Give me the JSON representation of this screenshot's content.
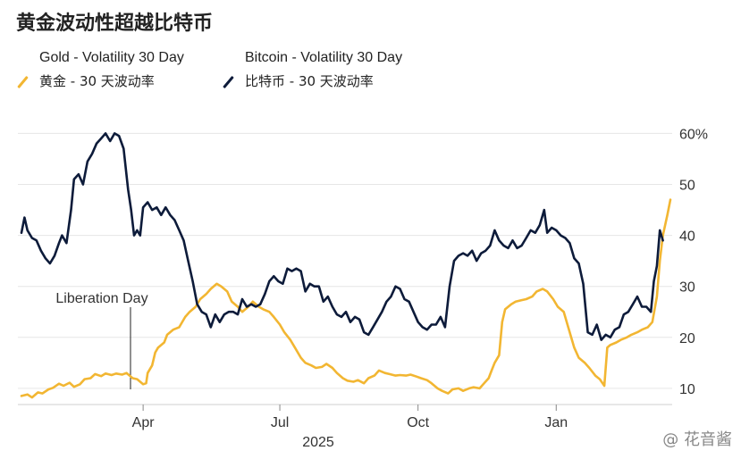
{
  "chart_data": {
    "type": "line",
    "title": "黄金波动性超越比特币",
    "legend": [
      {
        "name_en": "Gold - Volatility 30 Day",
        "name_cn": "黄金 - 30 天波动率",
        "color": "#f2b632"
      },
      {
        "name_en": "Bitcoin - Volatility 30 Day",
        "name_cn": "比特币 - 30 天波动率",
        "color": "#0d1b3a"
      }
    ],
    "y_axis": {
      "ticks": [
        "10",
        "20",
        "30",
        "40",
        "50",
        "60%"
      ],
      "range": [
        7,
        62
      ],
      "position": "right"
    },
    "x_axis": {
      "ticks": [
        "Apr",
        "Jul",
        "Oct",
        "Jan"
      ],
      "year_label": "2025"
    },
    "annotation": "Liberation Day",
    "series": [
      {
        "name": "Gold - Volatility 30 Day",
        "color": "#f2b632",
        "points": [
          [
            "2025-01-10",
            8.5
          ],
          [
            "2025-01-14",
            8.8
          ],
          [
            "2025-01-17",
            8.2
          ],
          [
            "2025-01-21",
            9.2
          ],
          [
            "2025-01-24",
            9.0
          ],
          [
            "2025-01-28",
            9.8
          ],
          [
            "2025-01-31",
            10.1
          ],
          [
            "2025-02-04",
            10.9
          ],
          [
            "2025-02-07",
            10.5
          ],
          [
            "2025-02-11",
            11.1
          ],
          [
            "2025-02-14",
            10.3
          ],
          [
            "2025-02-18",
            10.8
          ],
          [
            "2025-02-21",
            11.8
          ],
          [
            "2025-02-25",
            12.0
          ],
          [
            "2025-02-28",
            12.8
          ],
          [
            "2025-03-04",
            12.4
          ],
          [
            "2025-03-07",
            12.9
          ],
          [
            "2025-03-11",
            12.6
          ],
          [
            "2025-03-14",
            12.9
          ],
          [
            "2025-03-18",
            12.7
          ],
          [
            "2025-03-21",
            13.0
          ],
          [
            "2025-03-25",
            12.0
          ],
          [
            "2025-03-28",
            11.8
          ],
          [
            "2025-04-01",
            10.8
          ],
          [
            "2025-04-03",
            11.0
          ],
          [
            "2025-04-04",
            13.0
          ],
          [
            "2025-04-07",
            14.5
          ],
          [
            "2025-04-09",
            17.0
          ],
          [
            "2025-04-11",
            18.0
          ],
          [
            "2025-04-15",
            19.0
          ],
          [
            "2025-04-17",
            20.5
          ],
          [
            "2025-04-21",
            21.5
          ],
          [
            "2025-04-25",
            22.0
          ],
          [
            "2025-04-29",
            24.0
          ],
          [
            "2025-05-02",
            25.0
          ],
          [
            "2025-05-06",
            26.0
          ],
          [
            "2025-05-09",
            27.5
          ],
          [
            "2025-05-13",
            28.5
          ],
          [
            "2025-05-16",
            29.5
          ],
          [
            "2025-05-20",
            30.5
          ],
          [
            "2025-05-23",
            30.0
          ],
          [
            "2025-05-27",
            29.0
          ],
          [
            "2025-05-30",
            27.0
          ],
          [
            "2025-06-03",
            26.0
          ],
          [
            "2025-06-06",
            25.0
          ],
          [
            "2025-06-10",
            26.0
          ],
          [
            "2025-06-13",
            27.0
          ],
          [
            "2025-06-17",
            26.0
          ],
          [
            "2025-06-20",
            25.5
          ],
          [
            "2025-06-24",
            25.0
          ],
          [
            "2025-06-27",
            24.0
          ],
          [
            "2025-07-01",
            22.5
          ],
          [
            "2025-07-04",
            21.0
          ],
          [
            "2025-07-08",
            19.5
          ],
          [
            "2025-07-11",
            18.0
          ],
          [
            "2025-07-15",
            16.0
          ],
          [
            "2025-07-18",
            15.0
          ],
          [
            "2025-07-22",
            14.5
          ],
          [
            "2025-07-25",
            14.0
          ],
          [
            "2025-07-29",
            14.2
          ],
          [
            "2025-08-01",
            14.8
          ],
          [
            "2025-08-05",
            14.0
          ],
          [
            "2025-08-08",
            13.0
          ],
          [
            "2025-08-12",
            12.0
          ],
          [
            "2025-08-15",
            11.5
          ],
          [
            "2025-08-19",
            11.3
          ],
          [
            "2025-08-22",
            11.6
          ],
          [
            "2025-08-26",
            11.0
          ],
          [
            "2025-08-29",
            12.0
          ],
          [
            "2025-09-02",
            12.5
          ],
          [
            "2025-09-05",
            13.5
          ],
          [
            "2025-09-09",
            13.0
          ],
          [
            "2025-09-12",
            12.8
          ],
          [
            "2025-09-16",
            12.5
          ],
          [
            "2025-09-19",
            12.6
          ],
          [
            "2025-09-23",
            12.5
          ],
          [
            "2025-09-26",
            12.7
          ],
          [
            "2025-09-30",
            12.3
          ],
          [
            "2025-10-03",
            12.0
          ],
          [
            "2025-10-07",
            11.6
          ],
          [
            "2025-10-10",
            11.0
          ],
          [
            "2025-10-14",
            10.0
          ],
          [
            "2025-10-17",
            9.5
          ],
          [
            "2025-10-21",
            9.0
          ],
          [
            "2025-10-24",
            9.8
          ],
          [
            "2025-10-28",
            10.0
          ],
          [
            "2025-10-31",
            9.5
          ],
          [
            "2025-11-04",
            10.0
          ],
          [
            "2025-11-07",
            10.2
          ],
          [
            "2025-11-11",
            10.0
          ],
          [
            "2025-11-14",
            11.0
          ],
          [
            "2025-11-17",
            12.0
          ],
          [
            "2025-11-19",
            13.5
          ],
          [
            "2025-11-21",
            15.0
          ],
          [
            "2025-11-24",
            16.5
          ],
          [
            "2025-11-26",
            23.0
          ],
          [
            "2025-11-28",
            25.5
          ],
          [
            "2025-12-02",
            26.5
          ],
          [
            "2025-12-05",
            27.0
          ],
          [
            "2025-12-09",
            27.3
          ],
          [
            "2025-12-12",
            27.5
          ],
          [
            "2025-12-16",
            28.0
          ],
          [
            "2025-12-19",
            29.0
          ],
          [
            "2025-12-23",
            29.5
          ],
          [
            "2025-12-26",
            29.0
          ],
          [
            "2025-12-30",
            27.5
          ],
          [
            "2026-01-02",
            26.0
          ],
          [
            "2026-01-06",
            25.0
          ],
          [
            "2026-01-09",
            22.0
          ],
          [
            "2026-01-13",
            18.0
          ],
          [
            "2026-01-16",
            16.0
          ],
          [
            "2026-01-20",
            15.0
          ],
          [
            "2026-01-23",
            14.0
          ],
          [
            "2026-01-27",
            12.5
          ],
          [
            "2026-01-30",
            11.8
          ],
          [
            "2026-02-02",
            10.5
          ],
          [
            "2026-02-04",
            18.0
          ],
          [
            "2026-02-06",
            18.5
          ],
          [
            "2026-02-10",
            19.0
          ],
          [
            "2026-02-13",
            19.5
          ],
          [
            "2026-02-17",
            20.0
          ],
          [
            "2026-02-20",
            20.5
          ],
          [
            "2026-02-24",
            21.0
          ],
          [
            "2026-02-27",
            21.5
          ],
          [
            "2026-03-03",
            22.0
          ],
          [
            "2026-03-06",
            23.0
          ],
          [
            "2026-03-09",
            28.0
          ],
          [
            "2026-03-11",
            35.0
          ],
          [
            "2026-03-13",
            40.0
          ],
          [
            "2026-03-16",
            44.0
          ],
          [
            "2026-03-18",
            47.0
          ]
        ]
      },
      {
        "name": "Bitcoin - Volatility 30 Day",
        "color": "#0d1b3a",
        "points": [
          [
            "2025-01-10",
            40.5
          ],
          [
            "2025-01-12",
            43.5
          ],
          [
            "2025-01-14",
            41.0
          ],
          [
            "2025-01-17",
            39.5
          ],
          [
            "2025-01-20",
            39.0
          ],
          [
            "2025-01-23",
            37.0
          ],
          [
            "2025-01-26",
            35.5
          ],
          [
            "2025-01-29",
            34.5
          ],
          [
            "2025-02-01",
            36.0
          ],
          [
            "2025-02-04",
            38.5
          ],
          [
            "2025-02-06",
            40.0
          ],
          [
            "2025-02-09",
            38.5
          ],
          [
            "2025-02-12",
            45.0
          ],
          [
            "2025-02-14",
            51.0
          ],
          [
            "2025-02-17",
            52.0
          ],
          [
            "2025-02-20",
            50.0
          ],
          [
            "2025-02-23",
            54.5
          ],
          [
            "2025-02-26",
            56.0
          ],
          [
            "2025-03-01",
            58.0
          ],
          [
            "2025-03-04",
            59.0
          ],
          [
            "2025-03-07",
            60.0
          ],
          [
            "2025-03-10",
            58.5
          ],
          [
            "2025-03-13",
            60.0
          ],
          [
            "2025-03-16",
            59.5
          ],
          [
            "2025-03-19",
            57.0
          ],
          [
            "2025-03-22",
            49.0
          ],
          [
            "2025-03-24",
            45.0
          ],
          [
            "2025-03-26",
            40.0
          ],
          [
            "2025-03-28",
            41.0
          ],
          [
            "2025-03-30",
            40.0
          ],
          [
            "2025-04-01",
            45.5
          ],
          [
            "2025-04-04",
            46.5
          ],
          [
            "2025-04-07",
            45.0
          ],
          [
            "2025-04-10",
            45.5
          ],
          [
            "2025-04-13",
            44.0
          ],
          [
            "2025-04-16",
            45.5
          ],
          [
            "2025-04-19",
            44.0
          ],
          [
            "2025-04-22",
            43.0
          ],
          [
            "2025-04-25",
            41.0
          ],
          [
            "2025-04-28",
            39.0
          ],
          [
            "2025-05-01",
            35.0
          ],
          [
            "2025-05-04",
            31.0
          ],
          [
            "2025-05-07",
            26.5
          ],
          [
            "2025-05-10",
            25.0
          ],
          [
            "2025-05-13",
            24.5
          ],
          [
            "2025-05-16",
            22.0
          ],
          [
            "2025-05-19",
            24.5
          ],
          [
            "2025-05-22",
            23.0
          ],
          [
            "2025-05-25",
            24.5
          ],
          [
            "2025-05-28",
            25.0
          ],
          [
            "2025-05-31",
            25.0
          ],
          [
            "2025-06-03",
            24.5
          ],
          [
            "2025-06-06",
            27.5
          ],
          [
            "2025-06-09",
            26.0
          ],
          [
            "2025-06-12",
            26.5
          ],
          [
            "2025-06-15",
            26.0
          ],
          [
            "2025-06-18",
            26.5
          ],
          [
            "2025-06-21",
            28.5
          ],
          [
            "2025-06-24",
            31.0
          ],
          [
            "2025-06-27",
            32.0
          ],
          [
            "2025-06-30",
            31.0
          ],
          [
            "2025-07-03",
            30.5
          ],
          [
            "2025-07-06",
            33.5
          ],
          [
            "2025-07-09",
            33.0
          ],
          [
            "2025-07-12",
            33.5
          ],
          [
            "2025-07-15",
            33.0
          ],
          [
            "2025-07-18",
            29.0
          ],
          [
            "2025-07-21",
            30.5
          ],
          [
            "2025-07-24",
            30.0
          ],
          [
            "2025-07-27",
            30.0
          ],
          [
            "2025-07-30",
            27.0
          ],
          [
            "2025-08-02",
            28.0
          ],
          [
            "2025-08-05",
            26.0
          ],
          [
            "2025-08-08",
            24.5
          ],
          [
            "2025-08-11",
            24.0
          ],
          [
            "2025-08-14",
            25.0
          ],
          [
            "2025-08-17",
            23.0
          ],
          [
            "2025-08-20",
            24.0
          ],
          [
            "2025-08-23",
            23.5
          ],
          [
            "2025-08-26",
            21.0
          ],
          [
            "2025-08-29",
            20.5
          ],
          [
            "2025-09-01",
            22.0
          ],
          [
            "2025-09-04",
            23.5
          ],
          [
            "2025-09-07",
            25.0
          ],
          [
            "2025-09-10",
            27.0
          ],
          [
            "2025-09-13",
            28.0
          ],
          [
            "2025-09-16",
            30.0
          ],
          [
            "2025-09-19",
            29.5
          ],
          [
            "2025-09-22",
            27.5
          ],
          [
            "2025-09-25",
            27.0
          ],
          [
            "2025-09-28",
            25.0
          ],
          [
            "2025-10-01",
            23.0
          ],
          [
            "2025-10-04",
            22.0
          ],
          [
            "2025-10-07",
            21.5
          ],
          [
            "2025-10-10",
            22.5
          ],
          [
            "2025-10-13",
            22.5
          ],
          [
            "2025-10-16",
            24.0
          ],
          [
            "2025-10-19",
            22.0
          ],
          [
            "2025-10-22",
            30.0
          ],
          [
            "2025-10-25",
            35.0
          ],
          [
            "2025-10-28",
            36.0
          ],
          [
            "2025-10-31",
            36.5
          ],
          [
            "2025-11-03",
            36.0
          ],
          [
            "2025-11-06",
            37.0
          ],
          [
            "2025-11-09",
            35.0
          ],
          [
            "2025-11-12",
            36.5
          ],
          [
            "2025-11-15",
            37.0
          ],
          [
            "2025-11-18",
            38.0
          ],
          [
            "2025-11-21",
            41.0
          ],
          [
            "2025-11-24",
            39.0
          ],
          [
            "2025-11-27",
            38.0
          ],
          [
            "2025-11-30",
            37.5
          ],
          [
            "2025-12-03",
            39.0
          ],
          [
            "2025-12-06",
            37.5
          ],
          [
            "2025-12-09",
            38.0
          ],
          [
            "2025-12-12",
            39.5
          ],
          [
            "2025-12-15",
            41.0
          ],
          [
            "2025-12-18",
            40.5
          ],
          [
            "2025-12-21",
            42.0
          ],
          [
            "2025-12-24",
            45.0
          ],
          [
            "2025-12-26",
            40.5
          ],
          [
            "2025-12-29",
            41.5
          ],
          [
            "2026-01-01",
            41.0
          ],
          [
            "2026-01-04",
            40.0
          ],
          [
            "2026-01-07",
            39.5
          ],
          [
            "2026-01-10",
            38.5
          ],
          [
            "2026-01-13",
            35.5
          ],
          [
            "2026-01-16",
            34.5
          ],
          [
            "2026-01-19",
            30.5
          ],
          [
            "2026-01-22",
            21.0
          ],
          [
            "2026-01-25",
            20.5
          ],
          [
            "2026-01-28",
            22.5
          ],
          [
            "2026-01-31",
            19.5
          ],
          [
            "2026-02-03",
            20.5
          ],
          [
            "2026-02-06",
            20.0
          ],
          [
            "2026-02-09",
            21.5
          ],
          [
            "2026-02-12",
            22.0
          ],
          [
            "2026-02-15",
            24.5
          ],
          [
            "2026-02-18",
            25.0
          ],
          [
            "2026-02-21",
            26.5
          ],
          [
            "2026-02-24",
            28.0
          ],
          [
            "2026-02-27",
            26.0
          ],
          [
            "2026-03-02",
            26.0
          ],
          [
            "2026-03-05",
            25.0
          ],
          [
            "2026-03-07",
            31.0
          ],
          [
            "2026-03-09",
            34.0
          ],
          [
            "2026-03-11",
            41.0
          ],
          [
            "2026-03-13",
            39.0
          ]
        ]
      }
    ]
  },
  "watermark": "@ 花音酱"
}
